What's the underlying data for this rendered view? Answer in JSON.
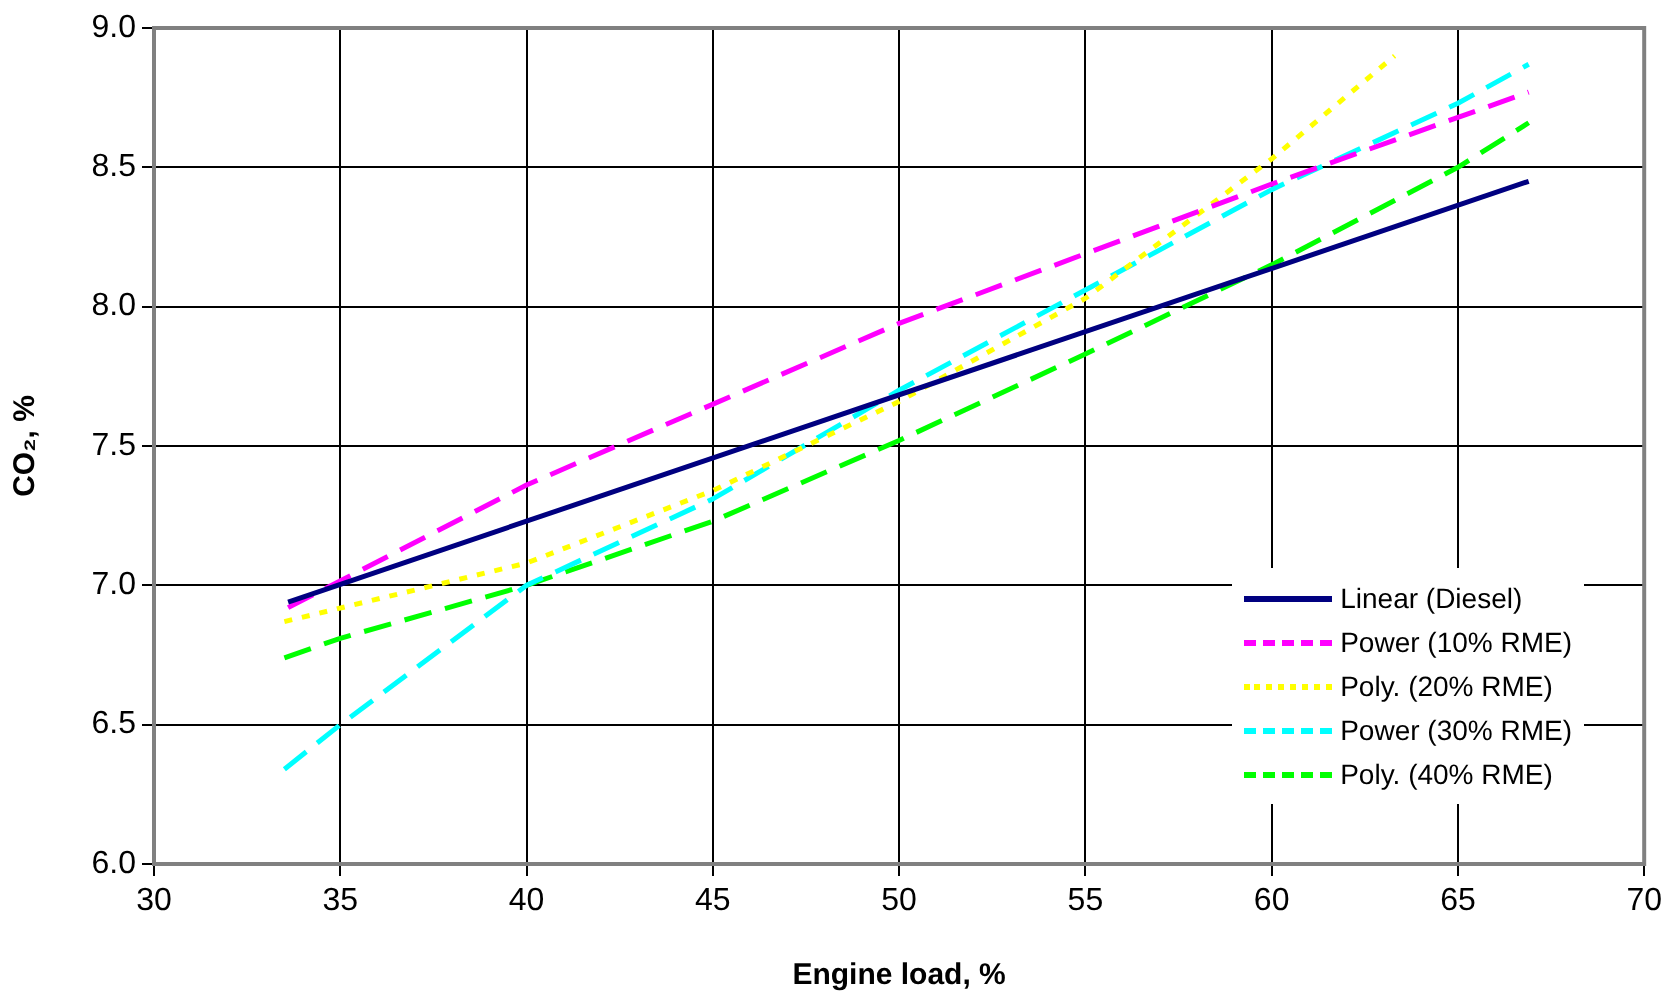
{
  "chart_data": {
    "type": "line",
    "xlabel": "Engine load, %",
    "ylabel": "CO₂, %",
    "xlim": [
      30,
      70
    ],
    "xticks": [
      30,
      35,
      40,
      45,
      50,
      55,
      60,
      65,
      70
    ],
    "ylim": [
      6,
      9
    ],
    "yticks": [
      {
        "value": 6,
        "label": "6.0"
      },
      {
        "value": 6.5,
        "label": "6.5"
      },
      {
        "value": 7,
        "label": "7.0"
      },
      {
        "value": 7.5,
        "label": "7.5"
      },
      {
        "value": 8,
        "label": "8.0"
      },
      {
        "value": 8.5,
        "label": "8.5"
      },
      {
        "value": 9,
        "label": "9.0"
      }
    ],
    "grid": true,
    "legend": "bottom right",
    "marker": "none",
    "series": [
      {
        "name": "Linear (Diesel)",
        "color": "#000080",
        "line_style": "solid",
        "x": [
          33.6,
          66.9
        ],
        "values": [
          6.94,
          8.45
        ]
      },
      {
        "name": "Power (10% RME)",
        "color": "#ff00ff",
        "line_style": "dashed",
        "x": [
          33.6,
          40,
          50,
          60,
          66.9
        ],
        "values": [
          6.92,
          7.36,
          7.94,
          8.44,
          8.77
        ]
      },
      {
        "name": "Poly. (20% RME)",
        "color": "#ffff00",
        "line_style": "dotted",
        "x": [
          33.5,
          40,
          45,
          50,
          55,
          60,
          63.3
        ],
        "values": [
          6.87,
          7.08,
          7.34,
          7.66,
          8.03,
          8.53,
          8.9
        ]
      },
      {
        "name": "Power (30% RME)",
        "color": "#00ffff",
        "line_style": "dashed",
        "x": [
          33.5,
          35,
          40,
          45,
          50,
          55,
          60,
          65,
          66.9
        ],
        "values": [
          6.34,
          6.5,
          7.0,
          7.31,
          7.7,
          8.06,
          8.42,
          8.73,
          8.87
        ]
      },
      {
        "name": "Poly. (40% RME)",
        "color": "#00ff00",
        "line_style": "dashed",
        "x": [
          33.5,
          35,
          40,
          45,
          50,
          55,
          60,
          65,
          66.9
        ],
        "values": [
          6.74,
          6.81,
          7.0,
          7.23,
          7.52,
          7.83,
          8.15,
          8.5,
          8.66
        ]
      }
    ]
  }
}
